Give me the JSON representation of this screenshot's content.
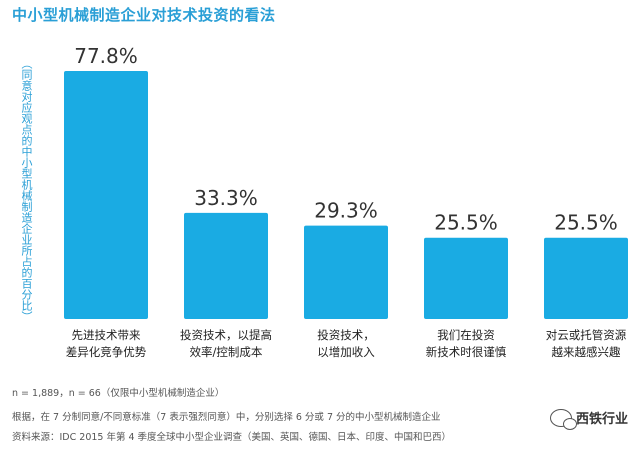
{
  "chart_data": {
    "type": "bar",
    "title": "中小型机械制造企业对技术投资的看法",
    "ylabel_lines": [
      "（同意对应观点的中小型",
      "机械制造企业所占的百分比）"
    ],
    "categories": [
      [
        "先进技术带来",
        "差异化竞争优势"
      ],
      [
        "投资技术，以提高",
        "效率/控制成本"
      ],
      [
        "投资技术，",
        "以增加收入"
      ],
      [
        "我们在投资",
        "新技术时很谨慎"
      ],
      [
        "对云或托管资源",
        "越来越感兴趣"
      ]
    ],
    "values": [
      77.8,
      33.3,
      29.3,
      25.5,
      25.5
    ],
    "value_labels": [
      "77.8%",
      "33.3%",
      "29.3%",
      "25.5%",
      "25.5%"
    ],
    "ylim": [
      0,
      80
    ],
    "bar_color": "#1aabe3",
    "grid": false,
    "legend": "none"
  },
  "notes": {
    "line1": "n = 1,889，n = 66（仅限中小型机械制造企业）",
    "line2": "根据，在 7 分制同意/不同意标准（7 表示强烈同意）中，分别选择 6 分或 7 分的中小型机械制造企业",
    "line3": "资料来源：IDC 2015 年第 4 季度全球中小型企业调查（美国、英国、德国、日本、印度、中国和巴西）"
  },
  "watermark": "西铁行业",
  "colors": {
    "accent": "#2a9fd6",
    "bar": "#1aabe3",
    "text": "#333333"
  }
}
